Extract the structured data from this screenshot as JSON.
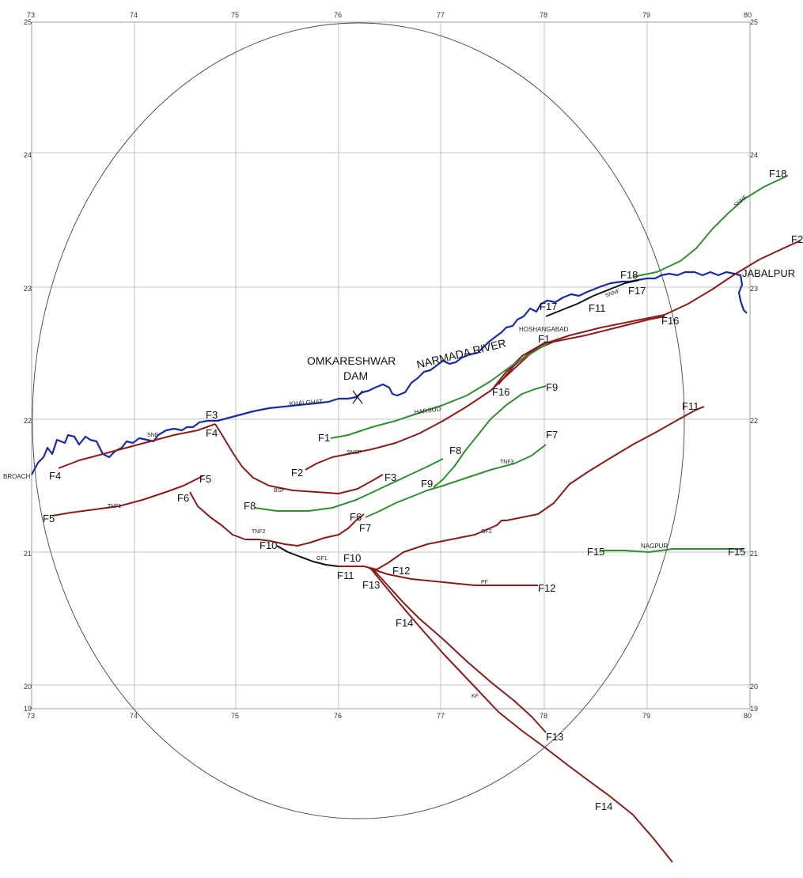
{
  "axes": {
    "lon_ticks": [
      "73",
      "74",
      "75",
      "76",
      "77",
      "78",
      "79",
      "80"
    ],
    "lat_ticks": [
      "25",
      "24",
      "23",
      "22",
      "21",
      "20",
      "19"
    ]
  },
  "colors": {
    "river": "#1a2aa8",
    "fault_red": "#8b1a1a",
    "fault_green": "#2f8f2f",
    "fault_black": "#111111",
    "circle": "#444444",
    "grid": "#b0b0b0"
  },
  "labels": {
    "dam_line1": "OMKARESHWAR",
    "dam_line2": "DAM",
    "river": "NARMADA RIVER",
    "jabalpur": "JABALPUR",
    "khalghat": "KHALGHAT",
    "harsud": "HARSUD",
    "hoshangabad": "HOSHANGABAD",
    "nagpur": "NAGPUR",
    "broach": "BROACH"
  },
  "fault_codes": {
    "snf": "SNF",
    "snsf": "SNSF",
    "bsf": "BSF",
    "tnf1": "TNF1",
    "tnf2": "TNF2",
    "tnf3": "TNF3",
    "gf1": "GF1",
    "gf2": "GF2",
    "pf": "PF",
    "kf": "KF",
    "snnf": "SNNF",
    "snnf2": "SNNF"
  },
  "faults": {
    "F1a": "F1",
    "F1b": "F1",
    "F2a": "F2",
    "F2b": "F2",
    "F3a": "F3",
    "F3b": "F3",
    "F4a": "F4",
    "F4b": "F4",
    "F5a": "F5",
    "F5b": "F5",
    "F6a": "F6",
    "F6b": "F6",
    "F7a": "F7",
    "F7b": "F7",
    "F8a": "F8",
    "F8b": "F8",
    "F9a": "F9",
    "F9b": "F9",
    "F10a": "F10",
    "F10b": "F10",
    "F11a": "F11",
    "F11b": "F11",
    "F11c": "F11",
    "F12a": "F12",
    "F12b": "F12",
    "F13a": "F13",
    "F13b": "F13",
    "F14a": "F14",
    "F14b": "F14",
    "F15a": "F15",
    "F15b": "F15",
    "F16a": "F16",
    "F16b": "F16",
    "F17a": "F17",
    "F17b": "F17",
    "F18a": "F18",
    "F18b": "F18"
  }
}
